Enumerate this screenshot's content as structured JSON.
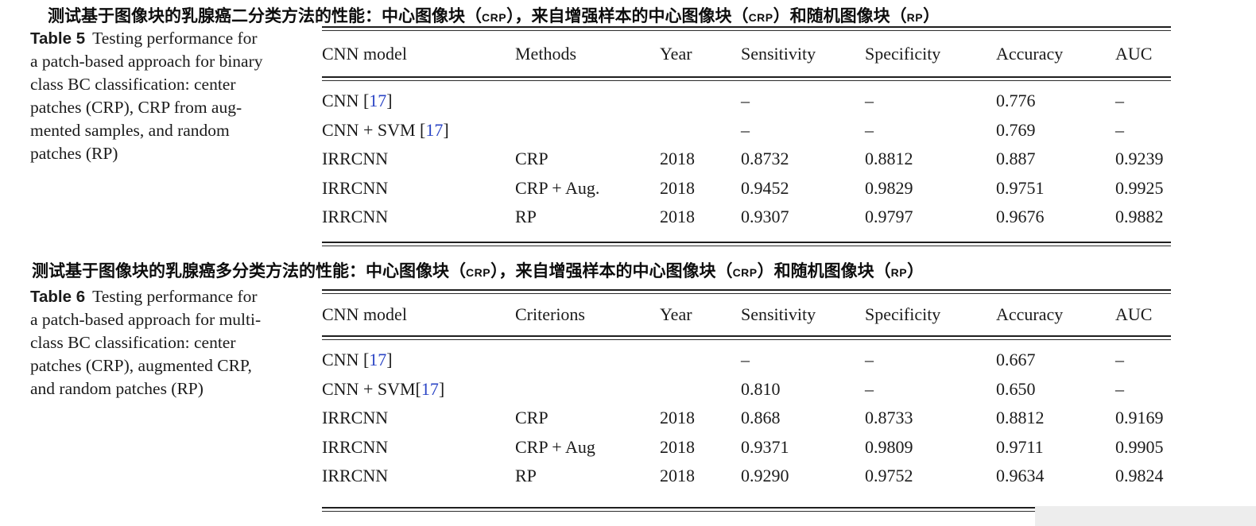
{
  "page": {
    "background": "#ffffff",
    "text_color": "#1b1b1b",
    "citation_color": "#2b45c5",
    "rule_color": "#1f1f1f"
  },
  "sections": [
    {
      "heading_cn": "测试基于图像块的乳腺癌二分类方法的性能：中心图像块（CRP），来自增强样本的中心图像块（CRP）和随机图像块（RP）",
      "heading_parts": [
        {
          "t": "测试基于图像块的乳腺癌二分类方法的性能：中心图像块（",
          "small": false
        },
        {
          "t": "CRP",
          "small": true
        },
        {
          "t": "），来自增强样本的中心图像块（",
          "small": false
        },
        {
          "t": "CRP",
          "small": true
        },
        {
          "t": "）和随机图像块（",
          "small": false
        },
        {
          "t": "RP",
          "small": true
        },
        {
          "t": "）",
          "small": false
        }
      ],
      "caption_label": "Table 5",
      "caption_lines": [
        "Testing performance for",
        "a patch-based approach for binary",
        "class BC classification: center",
        "patches (CRP), CRP from aug-",
        "mented samples, and random",
        "patches (RP)"
      ],
      "columns": [
        "CNN model",
        "Methods",
        "Year",
        "Sensitivity",
        "Specificity",
        "Accuracy",
        "AUC"
      ],
      "rows": [
        {
          "model": "CNN ",
          "cite": {
            "open": "[",
            "num": "17",
            "close": "]"
          },
          "method": "",
          "year": "",
          "sensitivity": "–",
          "specificity": "–",
          "accuracy": "0.776",
          "auc": "–"
        },
        {
          "model": "CNN + SVM ",
          "cite": {
            "open": "[",
            "num": "17",
            "close": "]"
          },
          "method": "",
          "year": "",
          "sensitivity": "–",
          "specificity": "–",
          "accuracy": "0.769",
          "auc": "–"
        },
        {
          "model": "IRRCNN",
          "cite": null,
          "method": "CRP",
          "year": "2018",
          "sensitivity": "0.8732",
          "specificity": "0.8812",
          "accuracy": "0.887",
          "auc": "0.9239"
        },
        {
          "model": "IRRCNN",
          "cite": null,
          "method": "CRP + Aug.",
          "year": "2018",
          "sensitivity": "0.9452",
          "specificity": "0.9829",
          "accuracy": "0.9751",
          "auc": "0.9925"
        },
        {
          "model": "IRRCNN",
          "cite": null,
          "method": "RP",
          "year": "2018",
          "sensitivity": "0.9307",
          "specificity": "0.9797",
          "accuracy": "0.9676",
          "auc": "0.9882"
        }
      ]
    },
    {
      "heading_cn": "测试基于图像块的乳腺癌多分类方法的性能：中心图像块（CRP），来自增强样本的中心图像块（CRP）和随机图像块（RP）",
      "heading_parts": [
        {
          "t": "测试基于图像块的乳腺癌多分类方法的性能：中心图像块（",
          "small": false
        },
        {
          "t": "CRP",
          "small": true
        },
        {
          "t": "），来自增强样本的中心图像块（",
          "small": false
        },
        {
          "t": "CRP",
          "small": true
        },
        {
          "t": "）和随机图像块（",
          "small": false
        },
        {
          "t": "RP",
          "small": true
        },
        {
          "t": "）",
          "small": false
        }
      ],
      "caption_label": "Table 6",
      "caption_lines": [
        "Testing performance for",
        "a patch-based approach for multi-",
        "class BC classification: center",
        "patches (CRP), augmented CRP,",
        "and random patches (RP)"
      ],
      "columns": [
        "CNN model",
        "Criterions",
        "Year",
        "Sensitivity",
        "Specificity",
        "Accuracy",
        "AUC"
      ],
      "rows": [
        {
          "model": "CNN ",
          "cite": {
            "open": "[",
            "num": "17",
            "close": "]"
          },
          "method": "",
          "year": "",
          "sensitivity": "–",
          "specificity": "–",
          "accuracy": "0.667",
          "auc": "–"
        },
        {
          "model": "CNN + SVM",
          "cite": {
            "open": "[",
            "num": "17",
            "close": "]"
          },
          "method": "",
          "year": "",
          "sensitivity": "0.810",
          "specificity": "–",
          "accuracy": "0.650",
          "auc": "–"
        },
        {
          "model": "IRRCNN",
          "cite": null,
          "method": "CRP",
          "year": "2018",
          "sensitivity": "0.868",
          "specificity": "0.8733",
          "accuracy": "0.8812",
          "auc": "0.9169"
        },
        {
          "model": "IRRCNN",
          "cite": null,
          "method": "CRP + Aug",
          "year": "2018",
          "sensitivity": "0.9371",
          "specificity": "0.9809",
          "accuracy": "0.9711",
          "auc": "0.9905"
        },
        {
          "model": "IRRCNN",
          "cite": null,
          "method": "RP",
          "year": "2018",
          "sensitivity": "0.9290",
          "specificity": "0.9752",
          "accuracy": "0.9634",
          "auc": "0.9824"
        }
      ]
    }
  ]
}
